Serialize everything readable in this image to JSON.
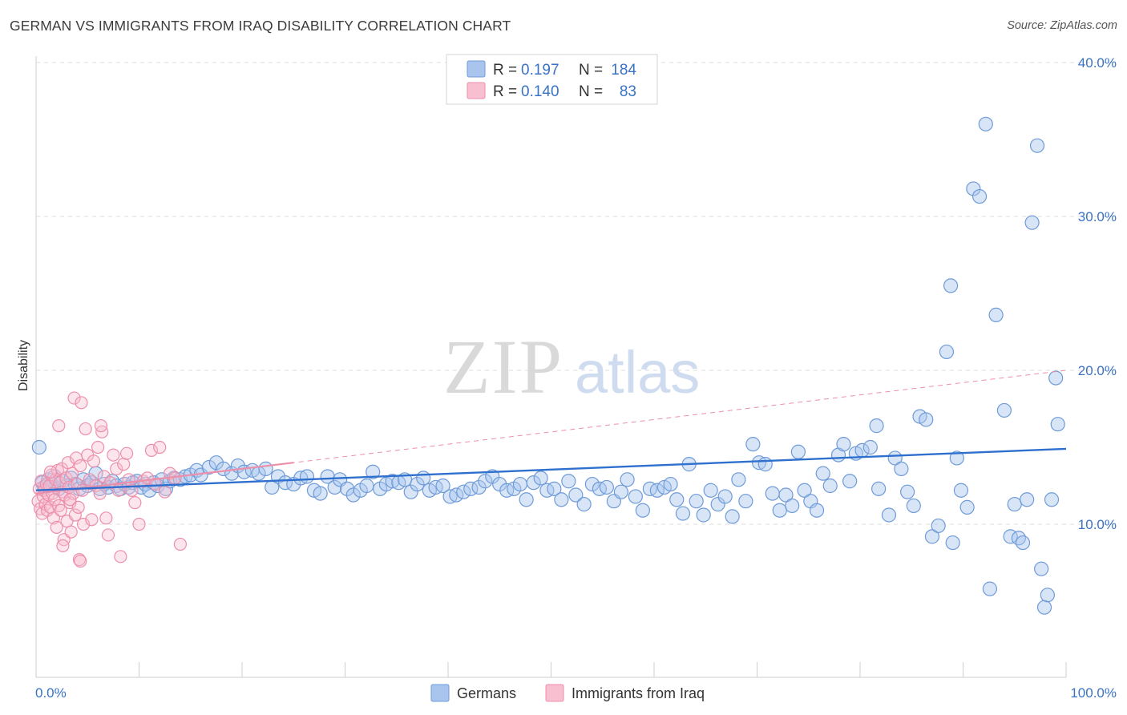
{
  "title": "GERMAN VS IMMIGRANTS FROM IRAQ DISABILITY CORRELATION CHART",
  "source": "Source: ZipAtlas.com",
  "watermark": {
    "zip": "ZIP",
    "atlas": "atlas"
  },
  "legend": {
    "r_label": "R =",
    "n_label": "N =",
    "rows": [
      {
        "r": "0.197",
        "n": "184",
        "color": "#a9c5ee",
        "stroke": "#6f9bd8"
      },
      {
        "r": "0.140",
        "n": "83",
        "color": "#f8bfd0",
        "stroke": "#ec8fab"
      }
    ]
  },
  "bottom_legend": [
    "Germans",
    "Immigrants from Iraq"
  ],
  "chart_data": {
    "type": "scatter",
    "title": "GERMAN VS IMMIGRANTS FROM IRAQ DISABILITY CORRELATION CHART",
    "xlabel": "",
    "ylabel": "Disability",
    "xlim": [
      0,
      100
    ],
    "ylim": [
      0,
      42
    ],
    "x_tick_labels": [
      "0.0%",
      "100.0%"
    ],
    "y_tick_labels": [
      "10.0%",
      "20.0%",
      "30.0%",
      "40.0%"
    ],
    "y_ticks": [
      10,
      20,
      30,
      40
    ],
    "grid": "horizontal dashed",
    "legend_position": "top-center",
    "series": [
      {
        "name": "Germans",
        "color": "#6f9bd8",
        "fill": "#a9c5ee",
        "trend": {
          "x0": 0,
          "y0": 12.2,
          "x1": 100,
          "y1": 14.9
        },
        "points": [
          [
            0.3,
            15
          ],
          [
            0.6,
            12.7
          ],
          [
            0.8,
            12.4
          ],
          [
            1.2,
            12.9
          ],
          [
            1.5,
            12.6
          ],
          [
            1.8,
            13.1
          ],
          [
            2.2,
            12.3
          ],
          [
            2.6,
            12.8
          ],
          [
            3,
            12.5
          ],
          [
            3.4,
            13
          ],
          [
            3.8,
            12.6
          ],
          [
            4.2,
            12.3
          ],
          [
            4.6,
            12.9
          ],
          [
            5,
            12.5
          ],
          [
            5.4,
            12.7
          ],
          [
            5.8,
            13.3
          ],
          [
            6.2,
            12.3
          ],
          [
            6.6,
            12.6
          ],
          [
            7,
            12.4
          ],
          [
            7.4,
            12.8
          ],
          [
            7.8,
            12.5
          ],
          [
            8.2,
            12.3
          ],
          [
            8.6,
            12.6
          ],
          [
            9,
            12.4
          ],
          [
            9.4,
            12.7
          ],
          [
            9.8,
            12.8
          ],
          [
            10.2,
            12.4
          ],
          [
            10.6,
            12.6
          ],
          [
            11,
            12.2
          ],
          [
            11.4,
            12.7
          ],
          [
            11.8,
            12.5
          ],
          [
            12.2,
            12.9
          ],
          [
            12.6,
            12.3
          ],
          [
            13,
            12.8
          ],
          [
            13.4,
            13
          ],
          [
            14,
            12.9
          ],
          [
            14.5,
            13.1
          ],
          [
            15,
            13.2
          ],
          [
            15.6,
            13.5
          ],
          [
            16,
            13.2
          ],
          [
            16.8,
            13.7
          ],
          [
            17.5,
            14
          ],
          [
            18.2,
            13.6
          ],
          [
            19,
            13.3
          ],
          [
            19.6,
            13.8
          ],
          [
            20.2,
            13.4
          ],
          [
            21,
            13.5
          ],
          [
            21.6,
            13.3
          ],
          [
            22.3,
            13.6
          ],
          [
            22.9,
            12.4
          ],
          [
            23.5,
            13.1
          ],
          [
            24.2,
            12.7
          ],
          [
            25,
            12.6
          ],
          [
            25.7,
            13
          ],
          [
            26.3,
            13.1
          ],
          [
            27,
            12.2
          ],
          [
            27.6,
            12
          ],
          [
            28.3,
            13.1
          ],
          [
            29,
            12.4
          ],
          [
            29.5,
            12.9
          ],
          [
            30.2,
            12.3
          ],
          [
            30.8,
            11.9
          ],
          [
            31.5,
            12.2
          ],
          [
            32.1,
            12.5
          ],
          [
            32.7,
            13.4
          ],
          [
            33.4,
            12.3
          ],
          [
            34,
            12.6
          ],
          [
            34.6,
            12.8
          ],
          [
            35.2,
            12.7
          ],
          [
            35.8,
            12.9
          ],
          [
            36.4,
            12.1
          ],
          [
            37,
            12.6
          ],
          [
            37.6,
            13
          ],
          [
            38.2,
            12.2
          ],
          [
            38.8,
            12.4
          ],
          [
            39.5,
            12.5
          ],
          [
            40.2,
            11.8
          ],
          [
            40.8,
            11.9
          ],
          [
            41.5,
            12.1
          ],
          [
            42.2,
            12.3
          ],
          [
            43,
            12.4
          ],
          [
            43.6,
            12.8
          ],
          [
            44.3,
            13.1
          ],
          [
            45,
            12.6
          ],
          [
            45.7,
            12.2
          ],
          [
            46.4,
            12.3
          ],
          [
            47,
            12.6
          ],
          [
            47.6,
            11.6
          ],
          [
            48.3,
            12.7
          ],
          [
            49,
            13
          ],
          [
            49.6,
            12.2
          ],
          [
            50.3,
            12.3
          ],
          [
            51,
            11.6
          ],
          [
            51.7,
            12.8
          ],
          [
            52.4,
            11.9
          ],
          [
            53.2,
            11.3
          ],
          [
            54,
            12.6
          ],
          [
            54.7,
            12.3
          ],
          [
            55.4,
            12.4
          ],
          [
            56.1,
            11.5
          ],
          [
            56.8,
            12.1
          ],
          [
            57.4,
            12.9
          ],
          [
            58.2,
            11.8
          ],
          [
            58.9,
            10.9
          ],
          [
            59.6,
            12.3
          ],
          [
            60.3,
            12.2
          ],
          [
            61,
            12.4
          ],
          [
            61.6,
            12.6
          ],
          [
            62.2,
            11.6
          ],
          [
            62.8,
            10.7
          ],
          [
            63.4,
            13.9
          ],
          [
            64.1,
            11.5
          ],
          [
            64.8,
            10.6
          ],
          [
            65.5,
            12.2
          ],
          [
            66.2,
            11.3
          ],
          [
            66.9,
            11.8
          ],
          [
            67.6,
            10.5
          ],
          [
            68.2,
            12.9
          ],
          [
            68.9,
            11.5
          ],
          [
            69.6,
            15.2
          ],
          [
            70.2,
            14
          ],
          [
            70.8,
            13.9
          ],
          [
            71.5,
            12
          ],
          [
            72.2,
            10.9
          ],
          [
            72.8,
            11.9
          ],
          [
            73.4,
            11.2
          ],
          [
            74,
            14.7
          ],
          [
            74.6,
            12.2
          ],
          [
            75.2,
            11.5
          ],
          [
            75.8,
            10.9
          ],
          [
            76.4,
            13.3
          ],
          [
            77.1,
            12.5
          ],
          [
            77.9,
            14.5
          ],
          [
            78.4,
            15.2
          ],
          [
            79,
            12.8
          ],
          [
            79.6,
            14.6
          ],
          [
            80.2,
            14.8
          ],
          [
            81,
            15
          ],
          [
            81.6,
            16.4
          ],
          [
            81.8,
            12.3
          ],
          [
            82.8,
            10.6
          ],
          [
            83.4,
            14.3
          ],
          [
            84,
            13.6
          ],
          [
            84.6,
            12.1
          ],
          [
            85.2,
            11.2
          ],
          [
            85.8,
            17
          ],
          [
            86.4,
            16.8
          ],
          [
            87,
            9.2
          ],
          [
            87.6,
            9.9
          ],
          [
            88.4,
            21.2
          ],
          [
            88.8,
            25.5
          ],
          [
            89,
            8.8
          ],
          [
            89.4,
            14.3
          ],
          [
            89.8,
            12.2
          ],
          [
            90.4,
            11.1
          ],
          [
            91,
            31.8
          ],
          [
            91.6,
            31.3
          ],
          [
            92.2,
            36
          ],
          [
            92.6,
            5.8
          ],
          [
            93.2,
            23.6
          ],
          [
            94,
            17.4
          ],
          [
            94.6,
            9.2
          ],
          [
            95,
            11.3
          ],
          [
            95.4,
            9.1
          ],
          [
            95.8,
            8.8
          ],
          [
            96.2,
            11.6
          ],
          [
            96.7,
            29.6
          ],
          [
            97.2,
            34.6
          ],
          [
            97.6,
            7.1
          ],
          [
            97.9,
            4.6
          ],
          [
            98.2,
            5.4
          ],
          [
            98.6,
            11.6
          ],
          [
            99,
            19.5
          ],
          [
            99.2,
            16.5
          ]
        ]
      },
      {
        "name": "Immigrants from Iraq",
        "color": "#ec8fab",
        "fill": "#f8bfd0",
        "trend": {
          "x0": 0,
          "y0": 12.0,
          "x1": 100,
          "y1": 20.0
        },
        "trend_solid_end_x": 25,
        "points": [
          [
            0.2,
            11.5
          ],
          [
            0.3,
            12.3
          ],
          [
            0.4,
            11.0
          ],
          [
            0.5,
            12.8
          ],
          [
            0.6,
            10.7
          ],
          [
            0.7,
            11.8
          ],
          [
            0.8,
            12.2
          ],
          [
            0.9,
            11.3
          ],
          [
            1.0,
            12.6
          ],
          [
            1.1,
            10.9
          ],
          [
            1.2,
            11.9
          ],
          [
            1.3,
            12.5
          ],
          [
            1.4,
            11.1
          ],
          [
            1.5,
            13.2
          ],
          [
            1.6,
            12.0
          ],
          [
            1.7,
            10.4
          ],
          [
            1.8,
            11.6
          ],
          [
            1.9,
            12.9
          ],
          [
            2.0,
            9.8
          ],
          [
            2.1,
            13.5
          ],
          [
            2.2,
            11.2
          ],
          [
            2.3,
            12.7
          ],
          [
            2.4,
            10.9
          ],
          [
            2.5,
            13.6
          ],
          [
            2.6,
            12.1
          ],
          [
            2.7,
            9.0
          ],
          [
            2.8,
            11.9
          ],
          [
            2.9,
            13.0
          ],
          [
            3.0,
            10.2
          ],
          [
            3.1,
            14.0
          ],
          [
            3.2,
            12.4
          ],
          [
            3.3,
            11.4
          ],
          [
            3.4,
            9.5
          ],
          [
            3.5,
            13.3
          ],
          [
            3.6,
            12.0
          ],
          [
            3.7,
            18.2
          ],
          [
            3.8,
            10.6
          ],
          [
            3.9,
            14.3
          ],
          [
            4.0,
            12.6
          ],
          [
            4.1,
            11.1
          ],
          [
            4.2,
            7.7
          ],
          [
            4.3,
            13.8
          ],
          [
            4.4,
            17.9
          ],
          [
            4.5,
            12.2
          ],
          [
            4.6,
            10.0
          ],
          [
            4.8,
            16.2
          ],
          [
            5.0,
            14.5
          ],
          [
            5.2,
            12.9
          ],
          [
            5.4,
            10.3
          ],
          [
            5.6,
            14.1
          ],
          [
            5.8,
            12.5
          ],
          [
            6.0,
            15.0
          ],
          [
            6.2,
            12.0
          ],
          [
            6.4,
            16.0
          ],
          [
            6.6,
            13.1
          ],
          [
            6.8,
            10.4
          ],
          [
            7.0,
            9.3
          ],
          [
            7.2,
            12.7
          ],
          [
            7.5,
            14.5
          ],
          [
            7.8,
            13.6
          ],
          [
            8.0,
            12.2
          ],
          [
            8.2,
            7.9
          ],
          [
            8.5,
            13.9
          ],
          [
            8.8,
            14.6
          ],
          [
            9.0,
            12.9
          ],
          [
            9.3,
            12.2
          ],
          [
            9.6,
            11.4
          ],
          [
            10.0,
            10.0
          ],
          [
            10.4,
            12.8
          ],
          [
            10.8,
            13.0
          ],
          [
            11.2,
            14.8
          ],
          [
            11.6,
            12.6
          ],
          [
            12.0,
            15.0
          ],
          [
            12.5,
            12.1
          ],
          [
            13.0,
            13.3
          ],
          [
            13.5,
            13.0
          ],
          [
            14.0,
            8.7
          ],
          [
            4.3,
            7.6
          ],
          [
            2.2,
            16.4
          ],
          [
            6.3,
            16.4
          ],
          [
            2.6,
            8.6
          ],
          [
            3.3,
            11.6
          ],
          [
            1.4,
            13.4
          ]
        ]
      }
    ]
  }
}
